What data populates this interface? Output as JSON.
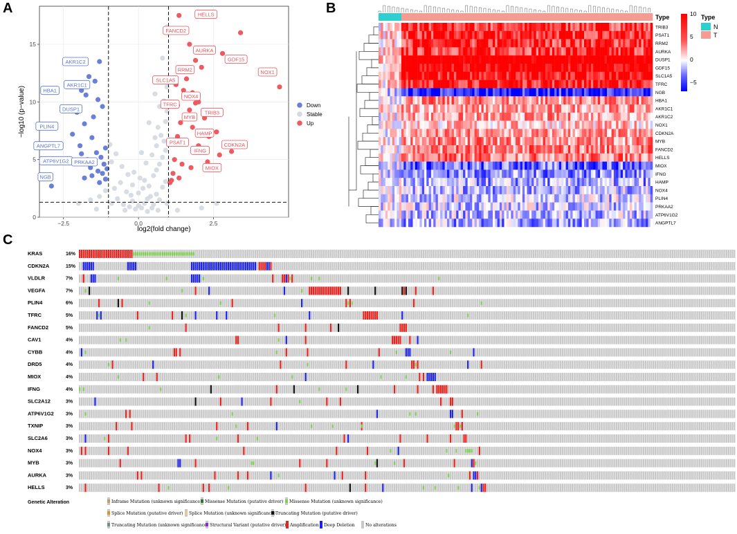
{
  "panels": {
    "a": "A",
    "b": "B",
    "c": "C"
  },
  "chart_data": [
    {
      "type": "scatter",
      "name": "volcano",
      "xlabel": "log2(fold change)",
      "ylabel": "−log10 (p−value)",
      "xlim": [
        -3.3,
        5.0
      ],
      "ylim": [
        0,
        18.3
      ],
      "xticks": [
        -2.5,
        0.0,
        2.5
      ],
      "yticks": [
        0,
        5,
        10,
        15
      ],
      "xtick_labels": [
        "−2.5",
        "0.0",
        "2.5"
      ],
      "ytick_labels": [
        "0",
        "5",
        "10",
        "15"
      ],
      "vlines": [
        -1,
        1
      ],
      "hline": 1.3,
      "legend": [
        {
          "label": "Down",
          "color": "#6a7fd6"
        },
        {
          "label": "Stable",
          "color": "#d4d8e0"
        },
        {
          "label": "Up",
          "color": "#ec5a62"
        }
      ],
      "stable_points": [
        [
          -2.0,
          1.2
        ],
        [
          -1.6,
          1.5
        ],
        [
          -1.3,
          1.8
        ],
        [
          -1.1,
          2.3
        ],
        [
          -0.9,
          1.2
        ],
        [
          -0.7,
          1.6
        ],
        [
          -0.5,
          1.1
        ],
        [
          -0.3,
          0.9
        ],
        [
          -0.2,
          1.4
        ],
        [
          -0.1,
          0.7
        ],
        [
          0.0,
          1.0
        ],
        [
          0.1,
          0.8
        ],
        [
          0.2,
          1.2
        ],
        [
          0.3,
          0.5
        ],
        [
          0.4,
          1.8
        ],
        [
          0.5,
          1.1
        ],
        [
          0.6,
          2.0
        ],
        [
          0.7,
          1.5
        ],
        [
          0.8,
          2.6
        ],
        [
          0.9,
          3.1
        ],
        [
          0.95,
          1.2
        ],
        [
          -0.8,
          2.5
        ],
        [
          -0.6,
          3.0
        ],
        [
          -0.4,
          2.2
        ],
        [
          -0.2,
          2.8
        ],
        [
          0.0,
          2.1
        ],
        [
          0.2,
          3.2
        ],
        [
          0.35,
          2.7
        ],
        [
          0.5,
          3.6
        ],
        [
          0.6,
          4.1
        ],
        [
          0.7,
          4.6
        ],
        [
          0.8,
          5.2
        ],
        [
          0.9,
          5.8
        ],
        [
          0.85,
          6.6
        ],
        [
          0.75,
          7.1
        ],
        [
          0.65,
          7.8
        ],
        [
          0.9,
          8.3
        ],
        [
          0.95,
          9.2
        ],
        [
          0.85,
          10.1
        ],
        [
          0.95,
          11.3
        ],
        [
          0.9,
          12.0
        ],
        [
          0.8,
          13.8
        ],
        [
          0.95,
          16.5
        ],
        [
          0.7,
          9.6
        ],
        [
          0.6,
          6.2
        ],
        [
          -0.9,
          4.8
        ],
        [
          -0.75,
          5.5
        ],
        [
          -0.55,
          4.4
        ],
        [
          -0.35,
          3.7
        ],
        [
          -0.15,
          3.9
        ],
        [
          0.05,
          3.4
        ],
        [
          0.25,
          4.7
        ],
        [
          0.45,
          5.4
        ],
        [
          0.55,
          6.9
        ],
        [
          0.15,
          2.5
        ],
        [
          -1.05,
          3.3
        ],
        [
          -0.95,
          6.3
        ],
        [
          -0.25,
          1.9
        ],
        [
          0.45,
          0.8
        ],
        [
          0.65,
          0.6
        ],
        [
          0.3,
          1.6
        ],
        [
          -0.45,
          0.6
        ],
        [
          1.3,
          0.6
        ],
        [
          2.1,
          0.8
        ],
        [
          2.6,
          1.2
        ],
        [
          -1.4,
          0.7
        ],
        [
          0.1,
          5.6
        ],
        [
          0.35,
          8.2
        ],
        [
          0.55,
          10.7
        ]
      ],
      "down_points": [
        [
          -1.65,
          12.2
        ],
        [
          -1.3,
          13.5
        ],
        [
          -1.45,
          11.8
        ],
        [
          -1.9,
          11.0
        ],
        [
          -1.75,
          10.6
        ],
        [
          -1.35,
          10.2
        ],
        [
          -1.2,
          9.6
        ],
        [
          -2.05,
          9.1
        ],
        [
          -1.5,
          8.7
        ],
        [
          -1.8,
          8.1
        ],
        [
          -2.2,
          7.2
        ],
        [
          -1.55,
          6.9
        ],
        [
          -1.95,
          6.2
        ],
        [
          -1.1,
          6.0
        ],
        [
          -1.25,
          5.2
        ],
        [
          -1.4,
          5.6
        ],
        [
          -1.7,
          5.0
        ],
        [
          -1.15,
          4.6
        ],
        [
          -1.05,
          4.2
        ],
        [
          -1.6,
          4.3
        ],
        [
          -1.35,
          4.0
        ],
        [
          -1.2,
          3.8
        ],
        [
          -1.8,
          3.4
        ],
        [
          -1.55,
          3.6
        ],
        [
          -1.1,
          3.3
        ],
        [
          -1.3,
          3.0
        ],
        [
          -2.9,
          2.7
        ],
        [
          -1.45,
          4.8
        ],
        [
          -1.9,
          5.5
        ],
        [
          -1.65,
          4.6
        ]
      ],
      "up_points": [
        [
          1.35,
          17.5
        ],
        [
          1.5,
          16.2
        ],
        [
          1.7,
          15.0
        ],
        [
          2.3,
          14.6
        ],
        [
          2.8,
          14.2
        ],
        [
          1.9,
          13.6
        ],
        [
          2.1,
          13.0
        ],
        [
          1.4,
          12.8
        ],
        [
          1.6,
          12.0
        ],
        [
          1.25,
          11.5
        ],
        [
          1.5,
          11.0
        ],
        [
          1.8,
          10.8
        ],
        [
          2.0,
          10.0
        ],
        [
          1.3,
          9.7
        ],
        [
          1.7,
          9.3
        ],
        [
          2.5,
          9.0
        ],
        [
          2.2,
          8.6
        ],
        [
          1.4,
          8.2
        ],
        [
          1.8,
          7.8
        ],
        [
          2.6,
          7.4
        ],
        [
          1.3,
          7.0
        ],
        [
          1.55,
          6.6
        ],
        [
          2.0,
          6.2
        ],
        [
          3.1,
          5.7
        ],
        [
          2.7,
          5.4
        ],
        [
          1.2,
          5.0
        ],
        [
          1.45,
          4.6
        ],
        [
          1.75,
          4.3
        ],
        [
          2.3,
          4.8
        ],
        [
          1.15,
          3.8
        ],
        [
          1.35,
          3.4
        ],
        [
          1.05,
          3.0
        ],
        [
          1.1,
          3.2
        ],
        [
          4.7,
          11.3
        ],
        [
          3.4,
          16.0
        ],
        [
          1.9,
          9.9
        ],
        [
          2.35,
          7.0
        ]
      ],
      "labels": [
        {
          "text": "HELLS",
          "x": 2.25,
          "y": 17.6,
          "group": "up"
        },
        {
          "text": "FANCD2",
          "x": 1.25,
          "y": 16.2,
          "group": "up"
        },
        {
          "text": "AURKA",
          "x": 2.2,
          "y": 14.5,
          "group": "up"
        },
        {
          "text": "GDF15",
          "x": 3.25,
          "y": 13.7,
          "group": "up"
        },
        {
          "text": "NOX1",
          "x": 4.3,
          "y": 12.6,
          "group": "up"
        },
        {
          "text": "RRM2",
          "x": 1.55,
          "y": 12.8,
          "group": "up"
        },
        {
          "text": "SLC1A5",
          "x": 0.9,
          "y": 11.9,
          "group": "up"
        },
        {
          "text": "NOX4",
          "x": 1.75,
          "y": 10.5,
          "group": "up"
        },
        {
          "text": "TFRC",
          "x": 1.05,
          "y": 9.8,
          "group": "up"
        },
        {
          "text": "MYB",
          "x": 1.7,
          "y": 8.7,
          "group": "up"
        },
        {
          "text": "TRIB3",
          "x": 2.45,
          "y": 9.1,
          "group": "up"
        },
        {
          "text": "HAMP",
          "x": 2.2,
          "y": 7.3,
          "group": "up"
        },
        {
          "text": "PSAT1",
          "x": 1.3,
          "y": 6.5,
          "group": "up"
        },
        {
          "text": "IFNG",
          "x": 2.05,
          "y": 5.8,
          "group": "up"
        },
        {
          "text": "CDKN2A",
          "x": 3.2,
          "y": 6.3,
          "group": "up"
        },
        {
          "text": "MIOX",
          "x": 2.45,
          "y": 4.3,
          "group": "up"
        },
        {
          "text": "AKR1C2",
          "x": -2.1,
          "y": 13.5,
          "group": "down"
        },
        {
          "text": "AKR1C1",
          "x": -2.05,
          "y": 11.5,
          "group": "down"
        },
        {
          "text": "HBA1",
          "x": -2.95,
          "y": 11.0,
          "group": "down"
        },
        {
          "text": "DUSP1",
          "x": -2.25,
          "y": 9.4,
          "group": "down"
        },
        {
          "text": "PLIN4",
          "x": -3.05,
          "y": 7.9,
          "group": "down"
        },
        {
          "text": "ANGPTL7",
          "x": -3.0,
          "y": 6.2,
          "group": "down"
        },
        {
          "text": "ATP6V1G2",
          "x": -2.75,
          "y": 4.9,
          "group": "down"
        },
        {
          "text": "PRKAA2",
          "x": -1.8,
          "y": 4.8,
          "group": "down"
        },
        {
          "text": "NGB",
          "x": -3.1,
          "y": 3.5,
          "group": "down"
        }
      ]
    },
    {
      "type": "heatmap",
      "name": "expression-heatmap",
      "rows": [
        "TRIB3",
        "PSAT1",
        "RRM2",
        "AURKA",
        "DUSP1",
        "GDF15",
        "SLC1A5",
        "TFRC",
        "NGB",
        "HBA1",
        "AKR1C1",
        "AKR1C2",
        "NOX1",
        "CDKN2A",
        "MYB",
        "FANCD2",
        "HELLS",
        "MIOX",
        "IFNG",
        "HAMP",
        "NOX4",
        "PLIN4",
        "PRKAA2",
        "ATP6V1G2",
        "ANGPTL7"
      ],
      "row_means": [
        5.5,
        6,
        5.5,
        5.5,
        9,
        8,
        7,
        6.5,
        -5.5,
        3,
        2.5,
        2.5,
        1.5,
        2.5,
        3,
        3.5,
        3.5,
        -3.5,
        -2.5,
        -2,
        -1.5,
        -1,
        -1,
        -1.5,
        -2
      ],
      "n_columns": 120,
      "n_normal": 10,
      "annotation_title": "Type",
      "annotation_levels": [
        {
          "label": "N",
          "color": "#2ecfcf"
        },
        {
          "label": "T",
          "color": "#f59b92"
        }
      ],
      "legend_ticks": [
        "10",
        "5",
        "0",
        "−5"
      ],
      "legend_values": [
        10,
        5,
        0,
        -5
      ],
      "color_range": [
        -7,
        10
      ],
      "col_header": "Type"
    },
    {
      "type": "table",
      "name": "oncoprint",
      "genes": [
        {
          "name": "KRAS",
          "pct": "16%"
        },
        {
          "name": "CDKN2A",
          "pct": "15%"
        },
        {
          "name": "VLDLR",
          "pct": "7%"
        },
        {
          "name": "VEGFA",
          "pct": "7%"
        },
        {
          "name": "PLIN4",
          "pct": "6%"
        },
        {
          "name": "TFRC",
          "pct": "5%"
        },
        {
          "name": "FANCD2",
          "pct": "5%"
        },
        {
          "name": "CAV1",
          "pct": "4%"
        },
        {
          "name": "CYBB",
          "pct": "4%"
        },
        {
          "name": "DRD5",
          "pct": "4%"
        },
        {
          "name": "MIOX",
          "pct": "4%"
        },
        {
          "name": "IFNG",
          "pct": "4%"
        },
        {
          "name": "SLC2A12",
          "pct": "3%"
        },
        {
          "name": "ATP6V1G2",
          "pct": "3%"
        },
        {
          "name": "TXNIP",
          "pct": "3%"
        },
        {
          "name": "SLC2A6",
          "pct": "3%"
        },
        {
          "name": "NOX4",
          "pct": "3%"
        },
        {
          "name": "MYB",
          "pct": "3%"
        },
        {
          "name": "AURKA",
          "pct": "3%"
        },
        {
          "name": "HELLS",
          "pct": "3%"
        }
      ],
      "legend_title": "Genetic Alteration",
      "legend": [
        {
          "label": "Inframe Mutation (unknown significance)",
          "color": "#c89a63"
        },
        {
          "label": "Missense Mutation (putative driver)",
          "color": "#2b7a2b"
        },
        {
          "label": "Missense Mutation (unknown significance)",
          "color": "#7fcf52"
        },
        {
          "label": "Splice Mutation (putative driver)",
          "color": "#e0902a"
        },
        {
          "label": "Splice Mutation (unknown significance)",
          "color": "#f0c48a"
        },
        {
          "label": "Truncating Mutation (putative driver)",
          "color": "#111111"
        },
        {
          "label": "Truncating Mutation (unknown significance)",
          "color": "#7a8a8a"
        },
        {
          "label": "Structural Variant (putative driver)",
          "color": "#8b2bd6"
        },
        {
          "label": "Amplification",
          "color": "#e8231e"
        },
        {
          "label": "Deep Deletion",
          "color": "#1c23e6"
        },
        {
          "label": "No alterations",
          "color": "#c8c8c8"
        }
      ]
    }
  ]
}
